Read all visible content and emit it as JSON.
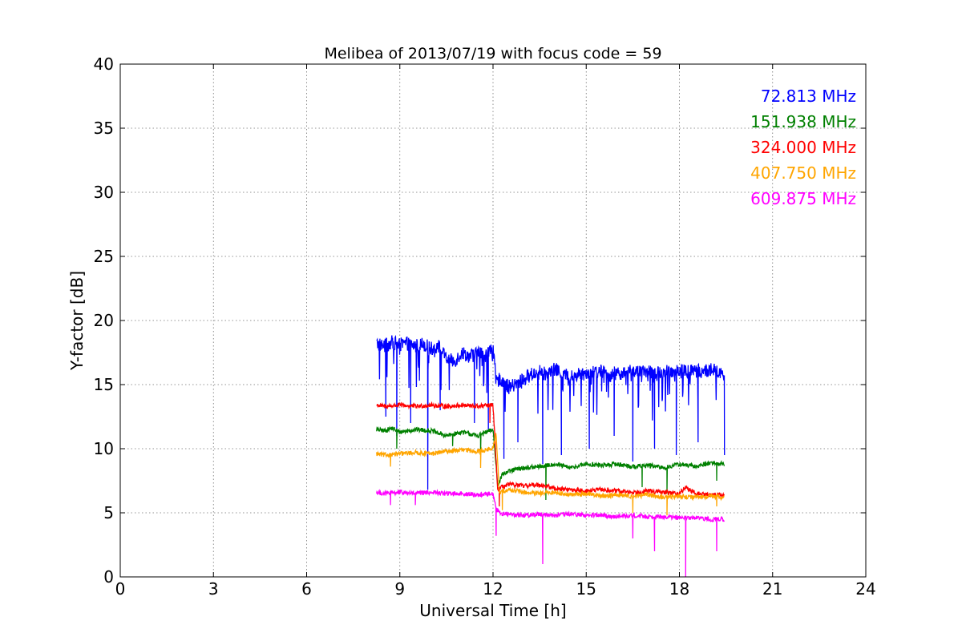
{
  "chart_data": {
    "type": "line",
    "title": "Melibea of 2013/07/19 with focus code = 59",
    "xlabel": "Universal Time [h]",
    "ylabel": "Y-factor [dB]",
    "xlim": [
      0,
      24
    ],
    "ylim": [
      0,
      40
    ],
    "xticks": [
      0,
      3,
      6,
      9,
      12,
      15,
      18,
      21,
      24
    ],
    "yticks": [
      0,
      5,
      10,
      15,
      20,
      25,
      30,
      35,
      40
    ],
    "grid": true,
    "legend_position": "top-right",
    "series": [
      {
        "name": "72.813 MHz",
        "color": "#0000ff",
        "x": [
          8.25,
          8.5,
          8.75,
          9.0,
          9.25,
          9.5,
          9.75,
          10.0,
          10.25,
          10.5,
          10.75,
          11.0,
          11.25,
          11.5,
          11.75,
          12.0,
          12.1,
          12.25,
          12.5,
          12.75,
          13.0,
          13.25,
          13.5,
          13.75,
          14.0,
          14.25,
          14.5,
          14.75,
          15.0,
          15.25,
          15.5,
          15.75,
          16.0,
          16.25,
          16.5,
          16.75,
          17.0,
          17.25,
          17.5,
          17.75,
          18.0,
          18.25,
          18.5,
          18.75,
          19.0,
          19.25,
          19.45
        ],
        "values": [
          18.2,
          18.0,
          18.3,
          18.1,
          18.2,
          18.0,
          18.2,
          17.8,
          18.0,
          17.0,
          16.8,
          17.5,
          17.2,
          17.5,
          17.3,
          17.8,
          15.2,
          15.5,
          14.8,
          15.0,
          15.5,
          15.8,
          16.0,
          15.8,
          16.2,
          15.8,
          15.6,
          15.8,
          16.0,
          15.9,
          16.1,
          15.7,
          16.0,
          15.8,
          16.1,
          15.9,
          16.0,
          15.8,
          16.1,
          16.0,
          16.2,
          16.0,
          16.1,
          16.0,
          16.2,
          16.0,
          15.8
        ],
        "dips": [
          [
            8.55,
            12.5
          ],
          [
            8.9,
            11.0
          ],
          [
            9.35,
            12.0
          ],
          [
            9.9,
            6.8
          ],
          [
            10.3,
            13.0
          ],
          [
            11.4,
            12.0
          ],
          [
            11.85,
            11.5
          ],
          [
            12.35,
            9.2
          ],
          [
            12.8,
            10.5
          ],
          [
            13.6,
            8.8
          ],
          [
            14.2,
            9.5
          ],
          [
            15.1,
            10.0
          ],
          [
            15.9,
            11.0
          ],
          [
            16.5,
            9.0
          ],
          [
            17.2,
            10.0
          ],
          [
            17.9,
            9.5
          ],
          [
            18.6,
            10.5
          ],
          [
            19.45,
            9.5
          ]
        ]
      },
      {
        "name": "151.938 MHz",
        "color": "#008000",
        "x": [
          8.25,
          8.5,
          8.75,
          9.0,
          9.5,
          10.0,
          10.5,
          11.0,
          11.5,
          12.0,
          12.15,
          12.3,
          12.5,
          12.75,
          13.0,
          13.5,
          14.0,
          14.5,
          15.0,
          15.5,
          16.0,
          16.5,
          17.0,
          17.5,
          18.0,
          18.5,
          19.0,
          19.45
        ],
        "values": [
          11.5,
          11.4,
          11.6,
          11.3,
          11.5,
          11.4,
          11.0,
          11.3,
          11.0,
          11.5,
          7.2,
          8.0,
          8.2,
          8.4,
          8.5,
          8.6,
          8.8,
          8.5,
          8.8,
          8.7,
          8.8,
          8.6,
          8.7,
          8.5,
          8.8,
          8.6,
          8.9,
          8.8
        ],
        "dips": [
          [
            8.9,
            10.0
          ],
          [
            10.7,
            10.2
          ],
          [
            11.6,
            9.5
          ],
          [
            13.7,
            6.0
          ],
          [
            16.8,
            7.0
          ],
          [
            17.6,
            6.5
          ],
          [
            19.2,
            7.5
          ]
        ]
      },
      {
        "name": "324.000 MHz",
        "color": "#ff0000",
        "x": [
          8.25,
          8.5,
          9.0,
          9.5,
          10.0,
          10.5,
          11.0,
          11.5,
          12.0,
          12.15,
          12.3,
          12.5,
          13.0,
          13.5,
          14.0,
          14.5,
          15.0,
          15.5,
          16.0,
          16.5,
          17.0,
          17.5,
          18.0,
          18.2,
          18.5,
          19.0,
          19.45
        ],
        "values": [
          13.4,
          13.3,
          13.4,
          13.3,
          13.4,
          13.3,
          13.4,
          13.3,
          13.4,
          6.8,
          7.0,
          7.2,
          7.1,
          7.2,
          6.9,
          6.8,
          6.7,
          6.8,
          6.7,
          6.6,
          6.7,
          6.6,
          6.5,
          7.0,
          6.5,
          6.4,
          6.4
        ],
        "dips": [
          [
            11.9,
            12.0
          ],
          [
            12.2,
            5.5
          ]
        ]
      },
      {
        "name": "407.750 MHz",
        "color": "#ffa500",
        "x": [
          8.25,
          8.5,
          9.0,
          9.5,
          10.0,
          10.5,
          11.0,
          11.5,
          12.0,
          12.1,
          12.2,
          12.3,
          12.5,
          13.0,
          13.5,
          14.0,
          14.5,
          15.0,
          15.5,
          16.0,
          16.5,
          17.0,
          17.5,
          18.0,
          18.5,
          19.0,
          19.45
        ],
        "values": [
          9.6,
          9.5,
          9.6,
          9.7,
          9.6,
          9.8,
          9.9,
          9.8,
          10.0,
          11.2,
          6.5,
          6.7,
          6.8,
          6.6,
          6.5,
          6.6,
          6.4,
          6.5,
          6.3,
          6.4,
          6.3,
          6.4,
          6.2,
          6.3,
          6.2,
          6.3,
          6.2
        ],
        "dips": [
          [
            8.7,
            8.6
          ],
          [
            11.6,
            8.5
          ],
          [
            12.3,
            5.2
          ],
          [
            16.5,
            5.0
          ],
          [
            17.6,
            4.8
          ],
          [
            19.2,
            5.5
          ]
        ]
      },
      {
        "name": "609.875 MHz",
        "color": "#ff00ff",
        "x": [
          8.25,
          8.5,
          9.0,
          9.5,
          10.0,
          10.5,
          11.0,
          11.5,
          12.0,
          12.1,
          12.3,
          12.5,
          13.0,
          13.5,
          14.0,
          14.5,
          15.0,
          15.5,
          16.0,
          16.5,
          17.0,
          17.5,
          18.0,
          18.5,
          19.0,
          19.45
        ],
        "values": [
          6.6,
          6.5,
          6.6,
          6.5,
          6.6,
          6.5,
          6.5,
          6.4,
          6.5,
          5.3,
          4.9,
          4.9,
          4.8,
          4.9,
          4.8,
          4.9,
          4.8,
          4.8,
          4.7,
          4.8,
          4.7,
          4.7,
          4.6,
          4.6,
          4.5,
          4.5
        ],
        "dips": [
          [
            8.7,
            5.6
          ],
          [
            9.5,
            5.6
          ],
          [
            12.1,
            3.2
          ],
          [
            13.6,
            1.0
          ],
          [
            16.5,
            3.0
          ],
          [
            17.2,
            2.0
          ],
          [
            18.2,
            0.0
          ],
          [
            19.2,
            2.0
          ]
        ]
      }
    ]
  }
}
